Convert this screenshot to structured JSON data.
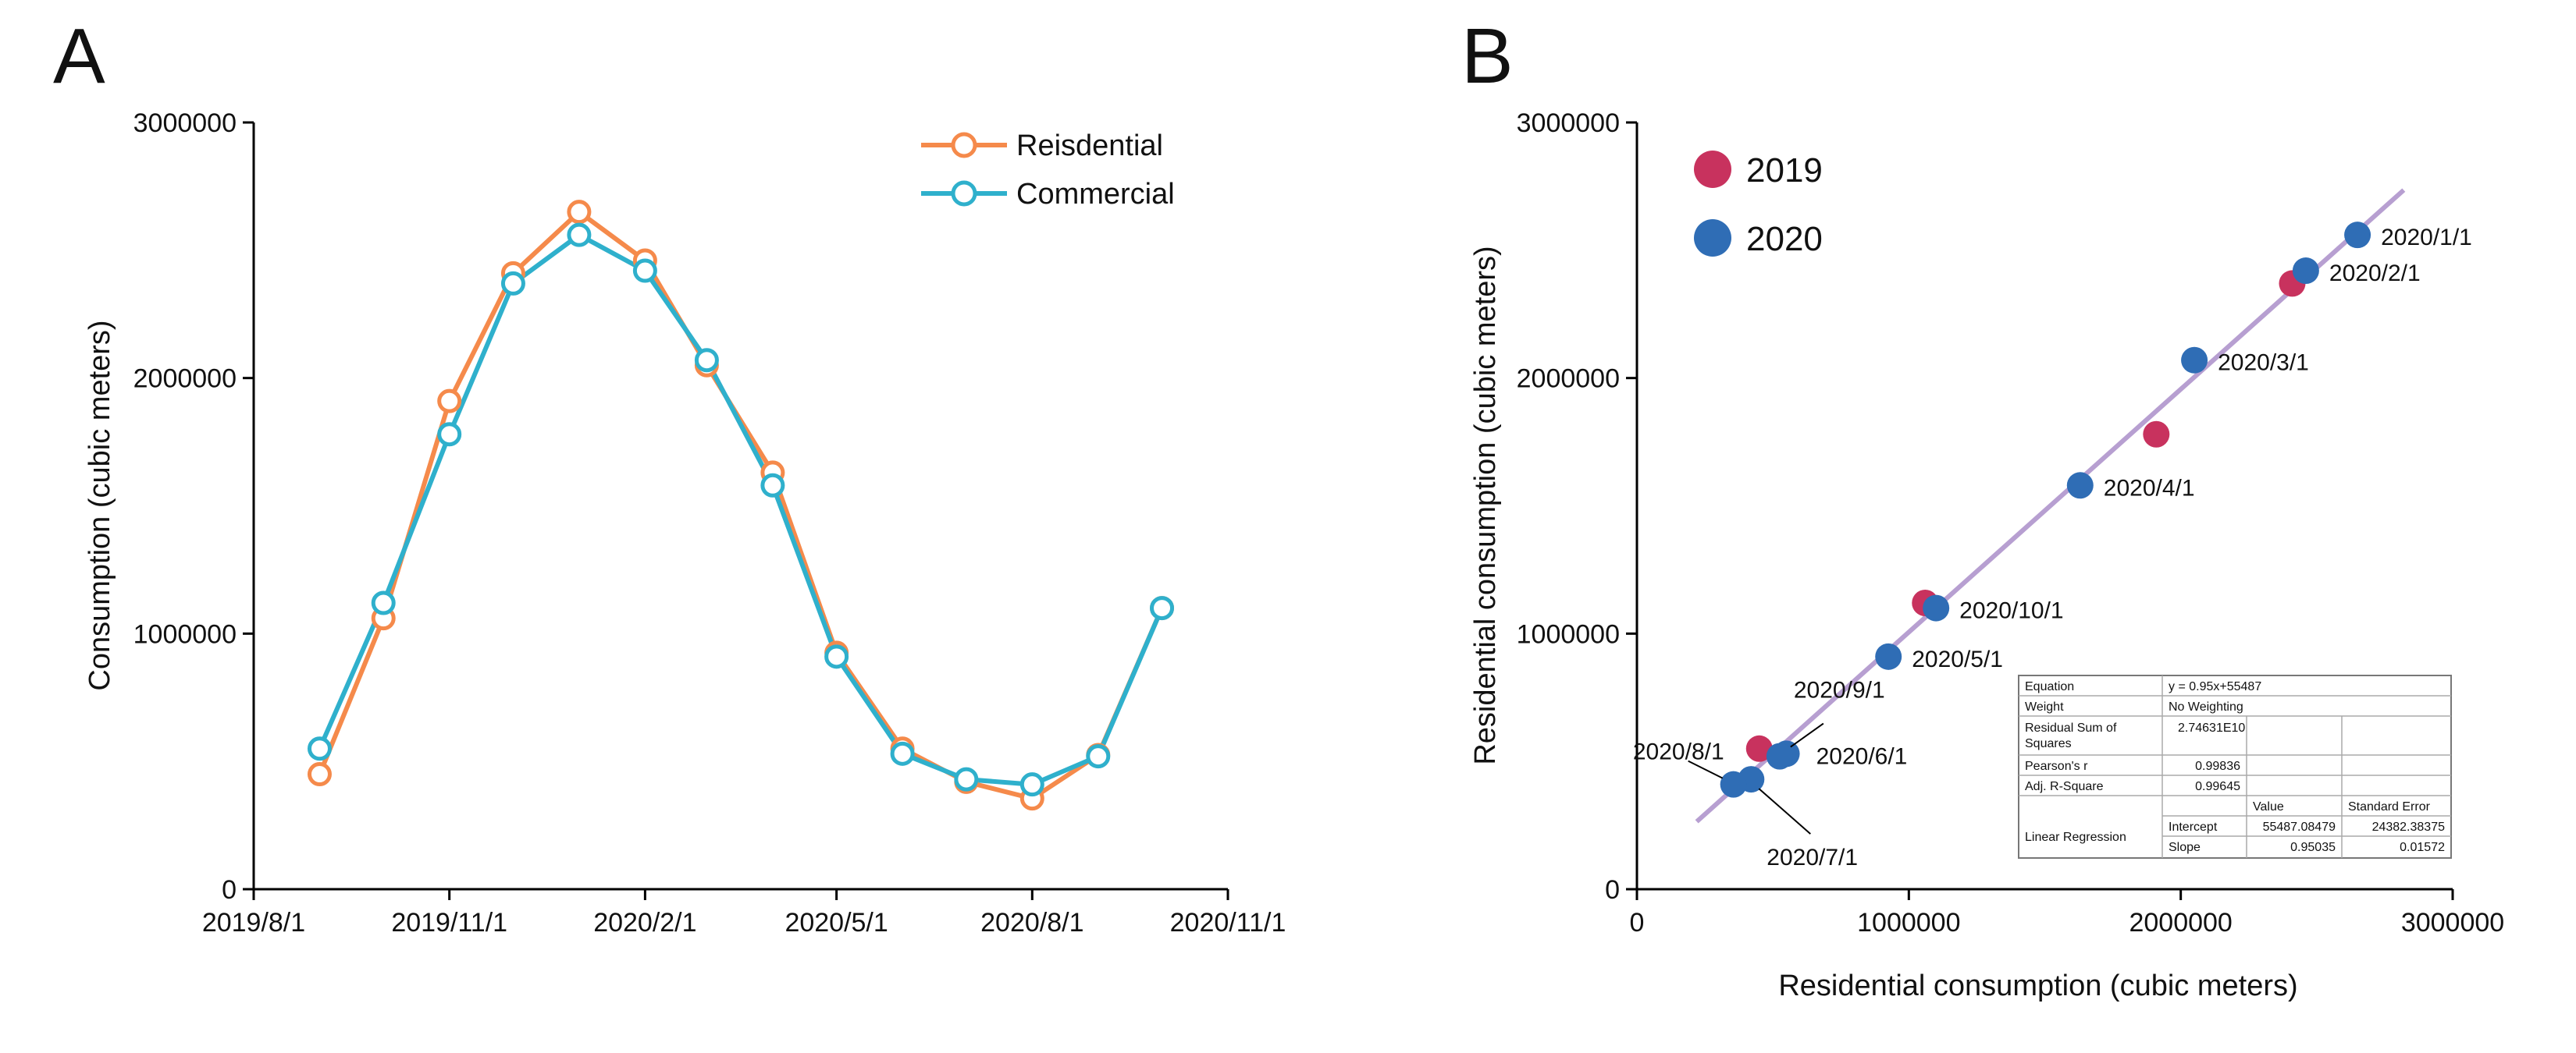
{
  "panels": {
    "a": {
      "letter": "A"
    },
    "b": {
      "letter": "B"
    }
  },
  "colors": {
    "residential": "#F58A4B",
    "commercial": "#2FB0CC",
    "year2019": "#C8325E",
    "year2020": "#2F6DB5",
    "fit": "#B79FD1"
  },
  "chart_data": [
    {
      "type": "line",
      "panel": "A",
      "xlabel": "",
      "ylabel": "Consumption (cubic meters)",
      "ylim": [
        0,
        3000000
      ],
      "yticks": [
        0,
        1000000,
        2000000,
        3000000
      ],
      "ytick_labels": [
        "0",
        "1000000",
        "2000000",
        "3000000"
      ],
      "xlim": [
        "2019-08-01",
        "2020-11-01"
      ],
      "xticks": [
        "2019-08-01",
        "2019-11-01",
        "2020-02-01",
        "2020-05-01",
        "2020-08-01",
        "2020-11-01"
      ],
      "xtick_labels": [
        "2019/8/1",
        "2019/11/1",
        "2020/2/1",
        "2020/5/1",
        "2020/8/1",
        "2020/11/1"
      ],
      "legend_position": "top-right",
      "x": [
        "2019-09-01",
        "2019-10-01",
        "2019-11-01",
        "2019-12-01",
        "2020-01-01",
        "2020-02-01",
        "2020-03-01",
        "2020-04-01",
        "2020-05-01",
        "2020-06-01",
        "2020-07-01",
        "2020-08-01",
        "2020-09-01",
        "2020-10-01"
      ],
      "series": [
        {
          "name": "Reisdential",
          "values": [
            450000,
            1060000,
            1910000,
            2410000,
            2650000,
            2460000,
            2050000,
            1630000,
            925000,
            550000,
            420000,
            355000,
            525000,
            1100000
          ]
        },
        {
          "name": "Commercial",
          "values": [
            550000,
            1120000,
            1780000,
            2370000,
            2560000,
            2420000,
            2070000,
            1580000,
            910000,
            530000,
            430000,
            410000,
            520000,
            1100000
          ]
        }
      ]
    },
    {
      "type": "scatter",
      "panel": "B",
      "xlabel": "Residential consumption (cubic meters)",
      "ylabel": "Residential consumption (cubic meters)",
      "xlim": [
        0,
        3000000
      ],
      "ylim": [
        0,
        3000000
      ],
      "xticks": [
        0,
        1000000,
        2000000,
        3000000
      ],
      "xtick_labels": [
        "0",
        "1000000",
        "2000000",
        "3000000"
      ],
      "yticks": [
        0,
        1000000,
        2000000,
        3000000
      ],
      "ytick_labels": [
        "0",
        "1000000",
        "2000000",
        "3000000"
      ],
      "legend_position": "top-left",
      "series": [
        {
          "name": "2019",
          "points": [
            {
              "x": 450000,
              "y": 550000
            },
            {
              "x": 1060000,
              "y": 1120000
            },
            {
              "x": 1910000,
              "y": 1780000
            },
            {
              "x": 2410000,
              "y": 2370000
            }
          ]
        },
        {
          "name": "2020",
          "points": [
            {
              "x": 2650000,
              "y": 2560000,
              "label": "2020/1/1"
            },
            {
              "x": 2460000,
              "y": 2420000,
              "label": "2020/2/1"
            },
            {
              "x": 2050000,
              "y": 2070000,
              "label": "2020/3/1"
            },
            {
              "x": 1630000,
              "y": 1580000,
              "label": "2020/4/1"
            },
            {
              "x": 925000,
              "y": 910000,
              "label": "2020/5/1"
            },
            {
              "x": 550000,
              "y": 530000,
              "label": "2020/6/1"
            },
            {
              "x": 420000,
              "y": 430000,
              "label": "2020/7/1"
            },
            {
              "x": 355000,
              "y": 410000,
              "label": "2020/8/1"
            },
            {
              "x": 525000,
              "y": 520000,
              "label": "2020/9/1"
            },
            {
              "x": 1100000,
              "y": 1100000,
              "label": "2020/10/1"
            }
          ]
        }
      ],
      "fit_line": {
        "slope": 0.95035,
        "intercept": 55487.08479,
        "x_range": [
          220000,
          2820000
        ]
      },
      "stats_table": {
        "equation_label": "Equation",
        "equation_value": "y = 0.95x+55487",
        "weight_label": "Weight",
        "weight_value": "No Weighting",
        "rss_label_line1": "Residual Sum of",
        "rss_label_line2": "Squares",
        "rss_value": "2.74631E10",
        "pearson_label": "Pearson's r",
        "pearson_value": "0.99836",
        "adjr_label": "Adj. R-Square",
        "adjr_value": "0.99645",
        "value_header": "Value",
        "stderr_header": "Standard Error",
        "linreg_label": "Linear Regression",
        "intercept_label": "Intercept",
        "intercept_value": "55487.08479",
        "intercept_se": "24382.38375",
        "slope_label": "Slope",
        "slope_value": "0.95035",
        "slope_se": "0.01572"
      }
    }
  ]
}
